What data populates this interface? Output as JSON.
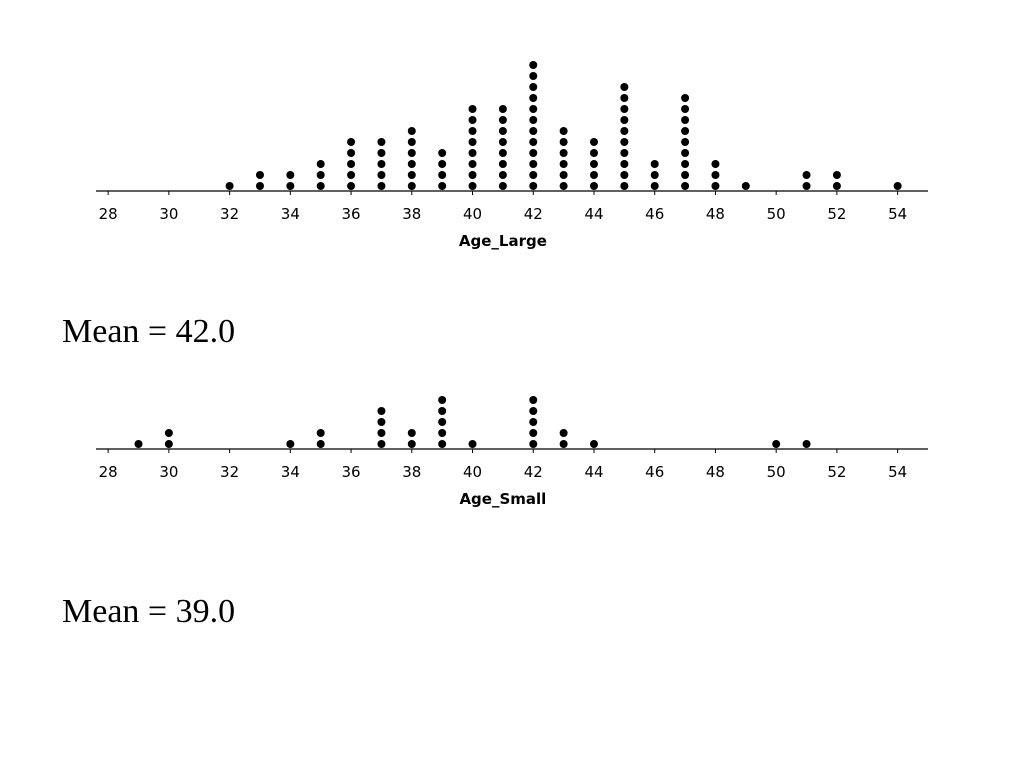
{
  "chart_data": [
    {
      "type": "dot",
      "xlabel": "Age_Large",
      "annotation": "Mean = 42.0",
      "color": "#000000",
      "x": [
        32,
        33,
        34,
        35,
        36,
        37,
        38,
        39,
        40,
        41,
        42,
        43,
        44,
        45,
        46,
        47,
        48,
        49,
        51,
        52,
        54
      ],
      "values": [
        1,
        2,
        2,
        3,
        5,
        5,
        6,
        4,
        8,
        8,
        12,
        6,
        5,
        10,
        3,
        9,
        3,
        1,
        2,
        2,
        1
      ],
      "xlim": [
        27.6,
        55
      ],
      "xticks": [
        28,
        30,
        32,
        34,
        36,
        38,
        40,
        42,
        44,
        46,
        48,
        50,
        52,
        54
      ]
    },
    {
      "type": "dot",
      "xlabel": "Age_Small",
      "annotation": "Mean = 39.0",
      "color": "#000000",
      "x": [
        29,
        30,
        34,
        35,
        37,
        38,
        39,
        40,
        42,
        43,
        44,
        50,
        51
      ],
      "values": [
        1,
        2,
        1,
        2,
        4,
        2,
        5,
        1,
        5,
        2,
        1,
        1,
        1
      ],
      "xlim": [
        27.6,
        55
      ],
      "xticks": [
        28,
        30,
        32,
        34,
        36,
        38,
        40,
        42,
        44,
        46,
        48,
        50,
        52,
        54
      ]
    }
  ]
}
